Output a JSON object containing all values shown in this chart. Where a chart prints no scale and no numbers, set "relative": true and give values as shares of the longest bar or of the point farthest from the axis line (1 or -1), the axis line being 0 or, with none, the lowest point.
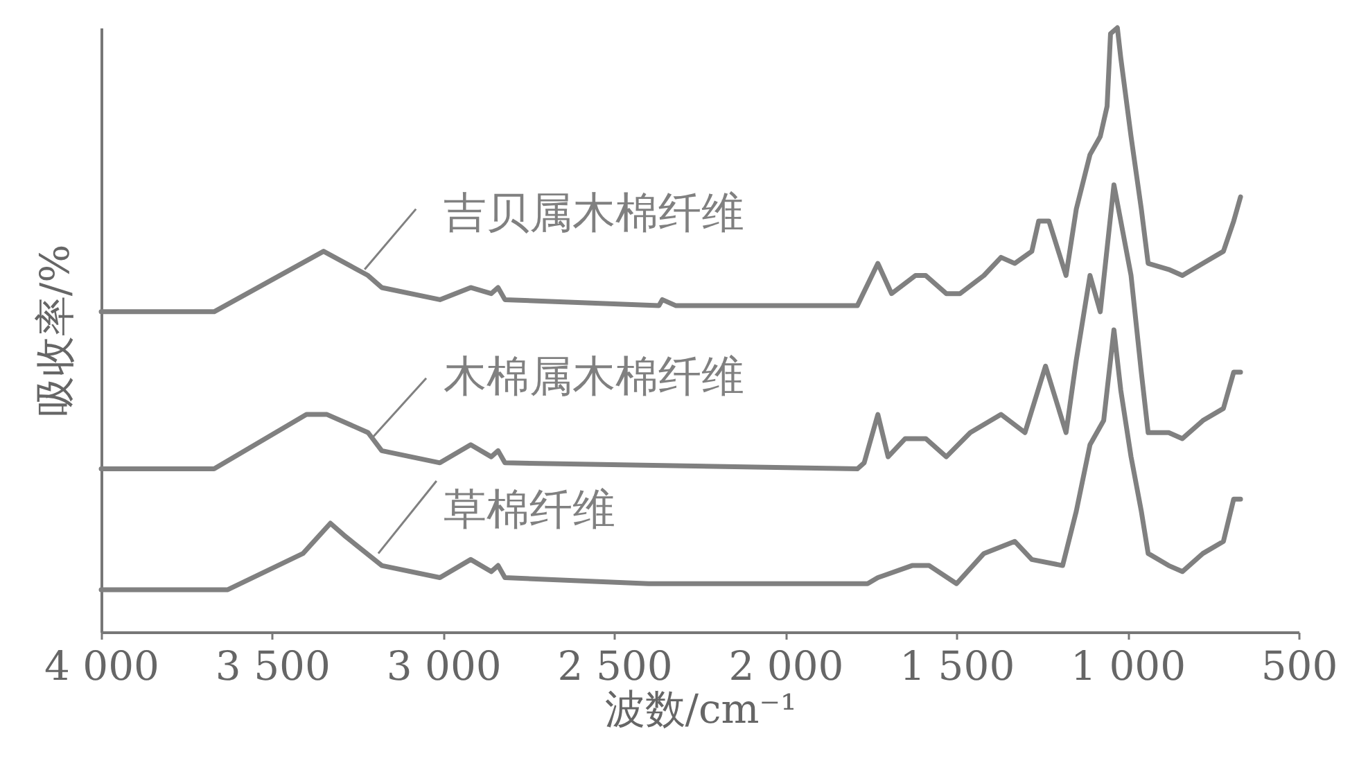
{
  "chart_data": {
    "type": "line",
    "relative": true,
    "xlabel": "波数/cm⁻¹",
    "ylabel": "吸收率/%",
    "xlim": [
      4000,
      500
    ],
    "xticks": [
      {
        "value": 4000,
        "label": "4 000"
      },
      {
        "value": 3500,
        "label": "3 500"
      },
      {
        "value": 3000,
        "label": "3 000"
      },
      {
        "value": 2500,
        "label": "2 500"
      },
      {
        "value": 2000,
        "label": "2 000"
      },
      {
        "value": 1500,
        "label": "1 500"
      },
      {
        "value": 1000,
        "label": "1 000"
      },
      500
    ],
    "grid": false,
    "legend": "center",
    "line_style": "solid",
    "series": [
      {
        "name": "吉贝属木棉纤维",
        "color": "#808080",
        "x": [
          4000,
          3670,
          3350,
          3220,
          3180,
          3010,
          2920,
          2860,
          2840,
          2820,
          2370,
          2360,
          2320,
          1790,
          1730,
          1690,
          1620,
          1590,
          1530,
          1490,
          1420,
          1370,
          1330,
          1280,
          1260,
          1230,
          1180,
          1150,
          1110,
          1080,
          1060,
          1050,
          1030,
          1020,
          990,
          960,
          940,
          880,
          840,
          780,
          720,
          690,
          670
        ],
        "values": [
          0.53,
          0.53,
          0.63,
          0.59,
          0.57,
          0.55,
          0.57,
          0.56,
          0.57,
          0.55,
          0.54,
          0.55,
          0.54,
          0.54,
          0.61,
          0.56,
          0.59,
          0.59,
          0.56,
          0.56,
          0.59,
          0.62,
          0.61,
          0.63,
          0.68,
          0.68,
          0.59,
          0.7,
          0.79,
          0.82,
          0.87,
          0.99,
          1,
          0.95,
          0.82,
          0.7,
          0.61,
          0.6,
          0.59,
          0.61,
          0.63,
          0.68,
          0.72
        ]
      },
      {
        "name": "木棉属木棉纤维",
        "color": "#808080",
        "x": [
          4000,
          3670,
          3400,
          3340,
          3220,
          3180,
          3010,
          2920,
          2860,
          2840,
          2820,
          1790,
          1770,
          1730,
          1700,
          1650,
          1590,
          1530,
          1460,
          1370,
          1300,
          1240,
          1180,
          1150,
          1110,
          1080,
          1040,
          990,
          960,
          940,
          880,
          840,
          780,
          720,
          690,
          670
        ],
        "values": [
          0.27,
          0.27,
          0.36,
          0.36,
          0.33,
          0.3,
          0.28,
          0.31,
          0.29,
          0.3,
          0.28,
          0.27,
          0.28,
          0.36,
          0.29,
          0.32,
          0.32,
          0.29,
          0.33,
          0.36,
          0.33,
          0.44,
          0.33,
          0.45,
          0.59,
          0.53,
          0.74,
          0.59,
          0.43,
          0.33,
          0.33,
          0.32,
          0.35,
          0.37,
          0.43,
          0.43
        ]
      },
      {
        "name": "草棉纤维",
        "color": "#808080",
        "x": [
          4000,
          3630,
          3410,
          3330,
          3290,
          3180,
          3010,
          2920,
          2860,
          2840,
          2820,
          2400,
          1800,
          1760,
          1730,
          1630,
          1580,
          1500,
          1420,
          1330,
          1280,
          1190,
          1150,
          1110,
          1070,
          1060,
          1040,
          1020,
          990,
          960,
          940,
          880,
          840,
          780,
          720,
          690,
          670
        ],
        "values": [
          0.07,
          0.07,
          0.13,
          0.18,
          0.16,
          0.11,
          0.09,
          0.12,
          0.1,
          0.11,
          0.09,
          0.08,
          0.08,
          0.08,
          0.09,
          0.11,
          0.11,
          0.08,
          0.13,
          0.15,
          0.12,
          0.11,
          0.2,
          0.31,
          0.35,
          0.4,
          0.5,
          0.4,
          0.29,
          0.2,
          0.13,
          0.11,
          0.1,
          0.13,
          0.15,
          0.22,
          0.22
        ]
      }
    ]
  }
}
